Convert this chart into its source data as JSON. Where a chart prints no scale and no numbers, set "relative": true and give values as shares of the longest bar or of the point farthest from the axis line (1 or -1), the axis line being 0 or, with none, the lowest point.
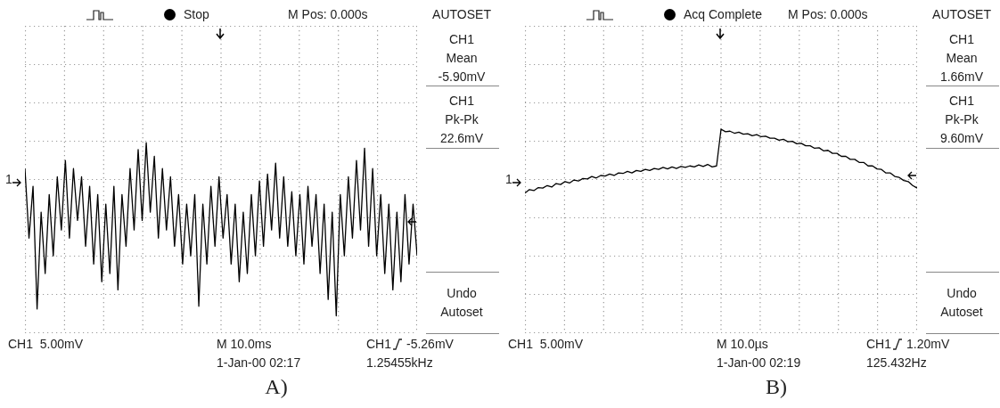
{
  "chart_data": [
    {
      "type": "line",
      "relative": true,
      "grid": true,
      "categories": [
        null,
        null,
        null,
        null,
        null,
        null,
        null,
        null,
        null,
        null,
        null,
        null,
        null,
        null,
        null,
        null,
        null,
        null,
        null,
        null,
        null,
        null,
        null,
        null,
        null,
        null,
        null,
        null,
        null,
        null,
        null,
        null,
        null,
        null,
        null,
        null,
        null,
        null,
        null,
        null,
        null,
        null,
        null,
        null,
        null,
        null,
        null,
        null,
        null,
        null,
        null,
        null,
        null,
        null,
        null,
        null,
        null,
        null,
        null,
        null,
        null,
        null,
        null,
        null,
        null,
        null,
        null,
        null,
        null,
        null,
        null,
        null,
        null,
        null,
        null,
        null,
        null,
        null,
        null,
        null,
        null,
        null,
        null,
        null,
        null,
        null,
        null,
        null,
        null,
        null,
        null,
        null,
        null,
        null,
        null,
        null,
        null,
        null
      ],
      "series": [
        {
          "color": "#000000",
          "values": [
            0.08,
            -0.43,
            -0.05,
            -0.95,
            -0.24,
            -0.69,
            -0.11,
            -0.56,
            0.02,
            -0.37,
            0.14,
            -0.43,
            0.08,
            -0.3,
            0.02,
            -0.49,
            -0.05,
            -0.62,
            -0.11,
            -0.75,
            -0.18,
            -0.69,
            -0.05,
            -0.81,
            -0.11,
            -0.49,
            0.08,
            -0.37,
            0.22,
            -0.3,
            0.27,
            -0.24,
            0.17,
            -0.43,
            0.08,
            -0.37,
            0.02,
            -0.49,
            -0.11,
            -0.62,
            -0.18,
            -0.56,
            -0.11,
            -0.93,
            -0.18,
            -0.62,
            -0.05,
            -0.49,
            0.02,
            -0.43,
            -0.11,
            -0.62,
            -0.18,
            -0.75,
            -0.24,
            -0.69,
            -0.11,
            -0.56,
            -0.01,
            -0.49,
            0.04,
            -0.37,
            0.12,
            -0.43,
            0.02,
            -0.49,
            -0.09,
            -0.56,
            -0.11,
            -0.62,
            -0.05,
            -0.49,
            -0.11,
            -0.69,
            -0.18,
            -0.88,
            -0.24,
            -1,
            -0.11,
            -0.56,
            0.02,
            -0.43,
            0.14,
            -0.37,
            0.23,
            -0.49,
            0.08,
            -0.56,
            -0.11,
            -0.69,
            -0.18,
            -0.81,
            -0.24,
            -0.75,
            -0.11,
            -0.62,
            -0.18,
            -0.56
          ]
        }
      ],
      "annotations": [
        "Stop",
        "M Pos: 0.000s",
        "AUTOSET",
        "CH1",
        "Mean",
        "-5.90mV",
        "CH1",
        "Pk-Pk",
        "22.6mV",
        "Undo",
        "Autoset",
        "CH1  5.00mV",
        "M 10.0ms",
        "CH1",
        "-5.26mV",
        "1-Jan-00 02:17",
        "1.25455kHz",
        "A)",
        "1"
      ]
    },
    {
      "type": "line",
      "relative": true,
      "grid": true,
      "categories": [
        null,
        null,
        null,
        null,
        null,
        null,
        null,
        null,
        null,
        null,
        null,
        null,
        null,
        null,
        null,
        null,
        null,
        null,
        null,
        null,
        null,
        null,
        null,
        null,
        null,
        null,
        null,
        null,
        null,
        null,
        null,
        null,
        null,
        null,
        null,
        null,
        null,
        null,
        null,
        null,
        null,
        null,
        null,
        null,
        null,
        null,
        null,
        null,
        null,
        null,
        null,
        null,
        null,
        null,
        null,
        null,
        null,
        null,
        null,
        null,
        null,
        null,
        null,
        null,
        null,
        null,
        null,
        null,
        null,
        null,
        null,
        null,
        null,
        null,
        null,
        null,
        null,
        null,
        null,
        null,
        null,
        null,
        null,
        null,
        null,
        null,
        null,
        null,
        null
      ],
      "series": [
        {
          "color": "#000000",
          "values": [
            -0.27,
            -0.2,
            -0.22,
            -0.16,
            -0.17,
            -0.12,
            -0.15,
            -0.08,
            -0.1,
            -0.04,
            -0.07,
            -0.01,
            -0.03,
            0.02,
            0.01,
            0.06,
            0.03,
            0.08,
            0.07,
            0.11,
            0.08,
            0.13,
            0.12,
            0.16,
            0.13,
            0.18,
            0.16,
            0.2,
            0.18,
            0.22,
            0.2,
            0.24,
            0.21,
            0.25,
            0.22,
            0.26,
            0.24,
            0.27,
            0.25,
            0.29,
            0.26,
            0.3,
            0.25,
            0.27,
            1,
            0.95,
            0.96,
            0.92,
            0.94,
            0.9,
            0.91,
            0.87,
            0.89,
            0.85,
            0.86,
            0.82,
            0.82,
            0.78,
            0.8,
            0.75,
            0.76,
            0.71,
            0.72,
            0.67,
            0.67,
            0.62,
            0.63,
            0.57,
            0.58,
            0.52,
            0.52,
            0.46,
            0.46,
            0.4,
            0.4,
            0.34,
            0.34,
            0.27,
            0.27,
            0.21,
            0.2,
            0.13,
            0.13,
            0.06,
            0.04,
            -0.02,
            -0.04,
            -0.12,
            -0.17
          ]
        }
      ],
      "annotations": [
        "Acq Complete",
        "M Pos: 0.000s",
        "AUTOSET",
        "CH1",
        "Mean",
        "1.66mV",
        "CH1",
        "Pk-Pk",
        "9.60mV",
        "Undo",
        "Autoset",
        "CH1  5.00mV",
        "M 10.0µs",
        "CH1",
        "1.20mV",
        "1-Jan-00 02:19",
        "125.432Hz",
        "B)",
        "1"
      ]
    }
  ]
}
